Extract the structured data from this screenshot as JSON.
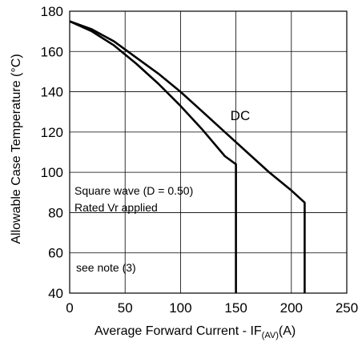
{
  "chart_data": {
    "type": "line",
    "xlabel": "Average Forward Current - IF(AV)(A)",
    "xlabel_parts": {
      "main": "Average Forward Current - I",
      "sub_f": "F",
      "sub": "(AV)",
      "unit": "(A)"
    },
    "ylabel": "Allowable Case Temperature (°C)",
    "xlim": [
      0,
      250
    ],
    "ylim": [
      40,
      180
    ],
    "x_ticks": [
      0,
      50,
      100,
      150,
      200,
      250
    ],
    "y_ticks": [
      40,
      60,
      80,
      100,
      120,
      140,
      160,
      180
    ],
    "grid": true,
    "series": [
      {
        "name": "",
        "x": [
          0,
          20,
          40,
          60,
          80,
          100,
          120,
          140,
          150,
          150
        ],
        "y": [
          175,
          170,
          163,
          154,
          144,
          133,
          121,
          108,
          104,
          40
        ]
      },
      {
        "name": "DC",
        "x": [
          0,
          20,
          40,
          60,
          80,
          100,
          120,
          140,
          160,
          180,
          200,
          212,
          212
        ],
        "y": [
          175,
          171,
          165,
          157,
          149,
          140,
          130,
          120,
          110,
          100,
          91,
          85,
          40
        ]
      }
    ],
    "annotations": {
      "dc_label": "DC",
      "square_wave": "Square wave (D = 0.50)",
      "rated": "Rated Vr  applied",
      "note": "see note (3)"
    }
  }
}
